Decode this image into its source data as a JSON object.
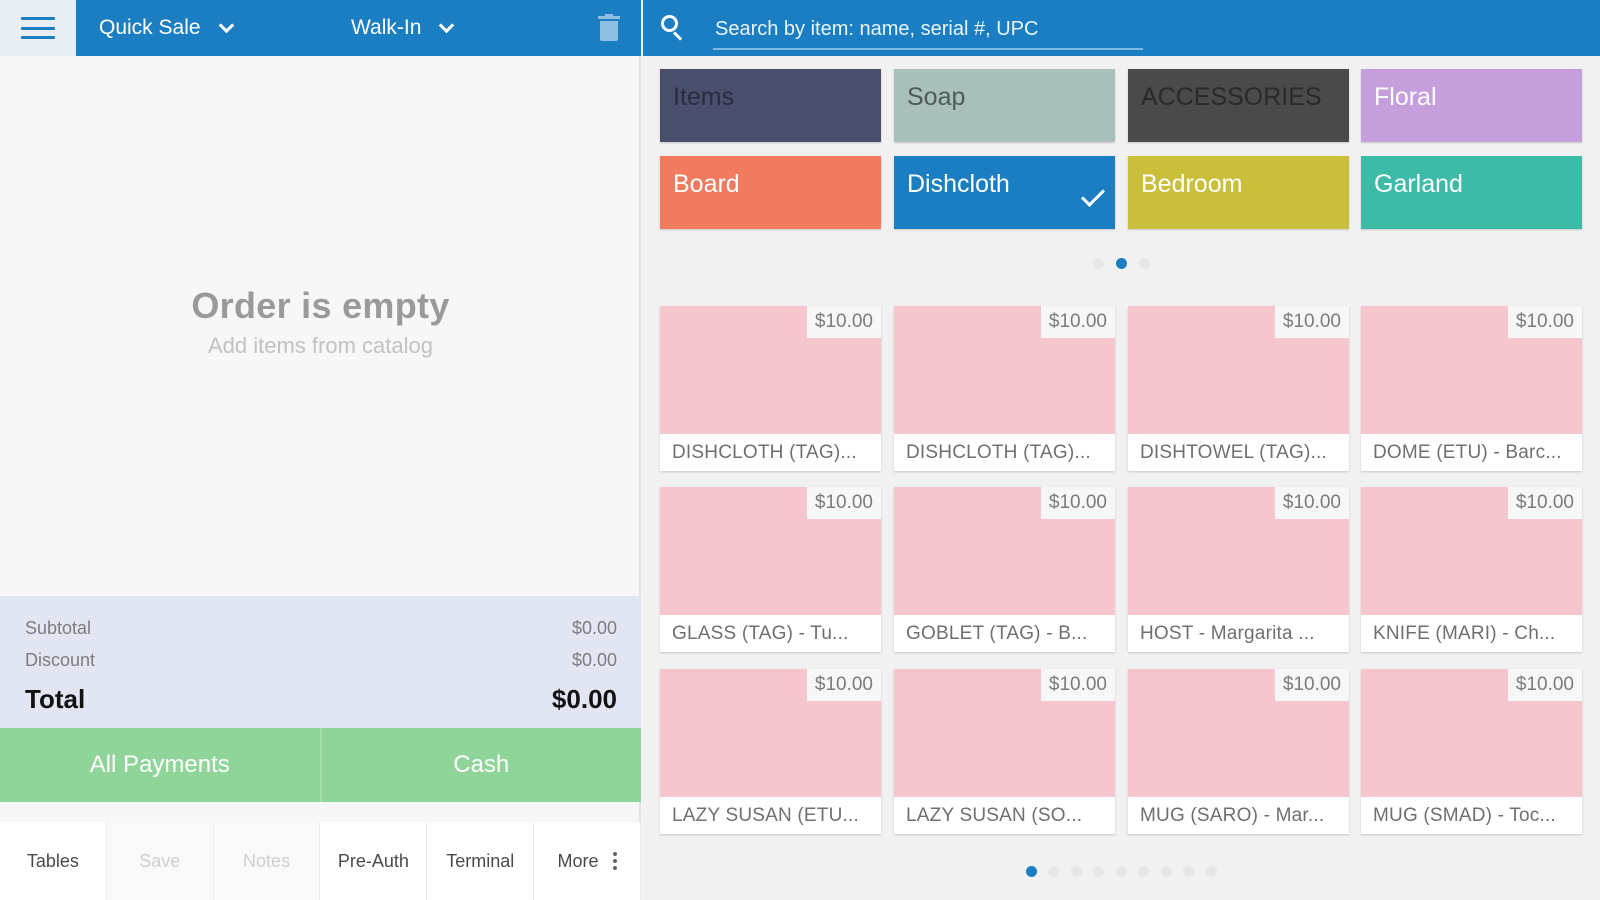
{
  "header": {
    "quick_sale": "Quick Sale",
    "walk_in": "Walk-In"
  },
  "order": {
    "empty_title": "Order is empty",
    "empty_subtitle": "Add items from catalog"
  },
  "totals": {
    "subtotal_label": "Subtotal",
    "subtotal_value": "$0.00",
    "discount_label": "Discount",
    "discount_value": "$0.00",
    "total_label": "Total",
    "total_value": "$0.00"
  },
  "payments": {
    "all_payments": "All Payments",
    "cash": "Cash"
  },
  "bottom_tabs": [
    {
      "label": "Tables",
      "enabled": true
    },
    {
      "label": "Save",
      "enabled": false
    },
    {
      "label": "Notes",
      "enabled": false
    },
    {
      "label": "Pre-Auth",
      "enabled": true
    },
    {
      "label": "Terminal",
      "enabled": true
    },
    {
      "label": "More",
      "enabled": true
    }
  ],
  "search": {
    "placeholder": "Search by item: name, serial #, UPC"
  },
  "categories": [
    {
      "label": "Items",
      "color": "#4a4f6e",
      "text_color": "#2a2d40",
      "selected": false
    },
    {
      "label": "Soap",
      "color": "#a9bfbb",
      "text_color": "#4d5b58",
      "selected": false
    },
    {
      "label": "ACCESSORIES",
      "color": "#4a4a4a",
      "text_color": "#2a2a2a",
      "selected": false
    },
    {
      "label": "Floral",
      "color": "#c59fdb",
      "text_color": "#ffffff",
      "selected": false
    },
    {
      "label": "Board",
      "color": "#f17a5f",
      "text_color": "#ffffff",
      "selected": false
    },
    {
      "label": "Dishcloth",
      "color": "#1b7ec3",
      "text_color": "#ffffff",
      "selected": true
    },
    {
      "label": "Bedroom",
      "color": "#c9bf3b",
      "text_color": "#ffffff",
      "selected": false
    },
    {
      "label": "Garland",
      "color": "#3cbca7",
      "text_color": "#ffffff",
      "selected": false
    }
  ],
  "category_pages": {
    "count": 3,
    "active": 1
  },
  "products": [
    {
      "name": "DISHCLOTH (TAG)...",
      "price": "$10.00"
    },
    {
      "name": "DISHCLOTH (TAG)...",
      "price": "$10.00"
    },
    {
      "name": "DISHTOWEL (TAG)...",
      "price": "$10.00"
    },
    {
      "name": "DOME (ETU) - Barc...",
      "price": "$10.00"
    },
    {
      "name": "GLASS (TAG) - Tu...",
      "price": "$10.00"
    },
    {
      "name": "GOBLET (TAG) - B...",
      "price": "$10.00"
    },
    {
      "name": "HOST - Margarita ...",
      "price": "$10.00"
    },
    {
      "name": "KNIFE (MARI) - Ch...",
      "price": "$10.00"
    },
    {
      "name": "LAZY SUSAN (ETU...",
      "price": "$10.00"
    },
    {
      "name": "LAZY SUSAN (SO...",
      "price": "$10.00"
    },
    {
      "name": "MUG (SARO) - Mar...",
      "price": "$10.00"
    },
    {
      "name": "MUG (SMAD) - Toc...",
      "price": "$10.00"
    }
  ],
  "product_pages": {
    "count": 9,
    "active": 0
  },
  "icons": [
    "menu-icon",
    "chevron-down-icon",
    "trash-icon",
    "search-icon",
    "check-icon",
    "more-vertical-icon"
  ]
}
